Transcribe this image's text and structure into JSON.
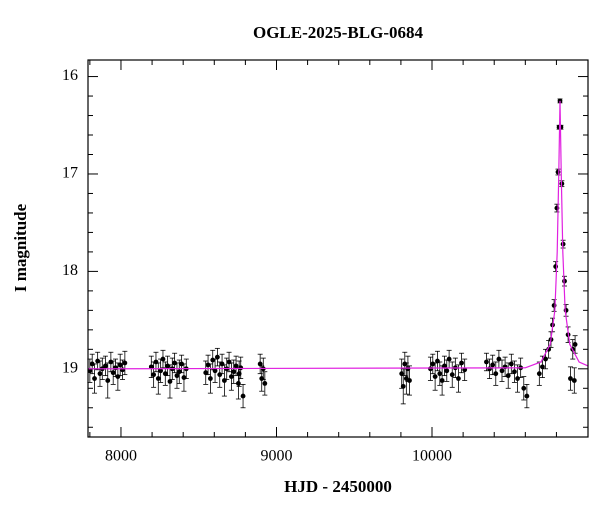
{
  "chart_data": {
    "type": "scatter",
    "title": "OGLE-2025-BLG-0684",
    "xlabel": "HJD - 2450000",
    "ylabel": "I magnitude",
    "xlim": [
      7788,
      11003
    ],
    "ylim": [
      19.7,
      15.83
    ],
    "xticks": [
      8000,
      9000,
      10000
    ],
    "yticks": [
      16,
      17,
      18,
      19
    ],
    "xminorticks": [
      7800,
      8200,
      8400,
      8600,
      8800,
      9200,
      9400,
      9600,
      9800,
      10200,
      10400,
      10600,
      10800
    ],
    "yminorticks": [
      16.2,
      16.4,
      16.6,
      16.8,
      17.2,
      17.4,
      17.6,
      17.8,
      18.2,
      18.4,
      18.6,
      18.8,
      19.2,
      19.4,
      19.6
    ],
    "series": [
      {
        "color": "#000000",
        "x": [
          7800,
          7815,
          7830,
          7850,
          7865,
          7880,
          7900,
          7915,
          7935,
          7950,
          7965,
          7980,
          7995,
          8010,
          8025,
          8195,
          8210,
          8225,
          8240,
          8255,
          8270,
          8285,
          8300,
          8315,
          8330,
          8345,
          8360,
          8375,
          8390,
          8405,
          8420,
          8545,
          8560,
          8575,
          8590,
          8605,
          8620,
          8635,
          8650,
          8665,
          8680,
          8695,
          8710,
          8725,
          8740,
          8755,
          8770,
          8785,
          8760,
          8895,
          8905,
          8915,
          8925,
          9805,
          9815,
          9825,
          9835,
          9845,
          9855,
          9990,
          10005,
          10020,
          10035,
          10050,
          10065,
          10080,
          10095,
          10110,
          10130,
          10150,
          10170,
          10190,
          10210,
          10350,
          10370,
          10390,
          10410,
          10430,
          10450,
          10470,
          10490,
          10510,
          10530,
          10550,
          10570,
          10590,
          10610,
          10690,
          10710,
          10730,
          10750,
          10765,
          10775,
          10785,
          10795,
          10803,
          10810,
          10817,
          10823,
          10829,
          10835,
          10843,
          10852,
          10862,
          10875,
          10890,
          10905,
          10915,
          10920
        ],
        "values": [
          19.02,
          18.95,
          19.1,
          18.92,
          19.05,
          19.0,
          18.97,
          19.12,
          18.93,
          19.04,
          18.99,
          19.08,
          18.96,
          19.01,
          18.94,
          18.98,
          19.06,
          18.93,
          19.1,
          19.02,
          18.9,
          19.05,
          18.97,
          19.13,
          19.0,
          18.94,
          19.07,
          19.03,
          18.95,
          19.09,
          19.0,
          19.04,
          18.96,
          19.1,
          18.91,
          19.02,
          18.88,
          19.06,
          18.95,
          19.12,
          19.0,
          18.93,
          19.08,
          19.03,
          18.97,
          19.15,
          18.99,
          19.28,
          19.05,
          18.95,
          19.1,
          19.0,
          19.15,
          19.05,
          19.18,
          18.95,
          19.1,
          19.0,
          19.12,
          19.0,
          18.95,
          19.08,
          18.92,
          19.05,
          19.12,
          18.97,
          19.02,
          18.9,
          19.06,
          18.99,
          19.1,
          18.94,
          19.01,
          18.93,
          19.0,
          18.96,
          19.05,
          18.9,
          19.02,
          18.98,
          19.07,
          18.95,
          19.03,
          19.1,
          18.99,
          19.2,
          19.28,
          19.05,
          18.98,
          18.9,
          18.8,
          18.7,
          18.55,
          18.35,
          17.95,
          17.35,
          16.98,
          16.52,
          16.25,
          16.52,
          17.1,
          17.72,
          18.1,
          18.4,
          18.65,
          19.1,
          18.8,
          19.12,
          18.75
        ],
        "errors": [
          0.12,
          0.1,
          0.15,
          0.09,
          0.13,
          0.11,
          0.1,
          0.18,
          0.1,
          0.12,
          0.09,
          0.14,
          0.11,
          0.1,
          0.12,
          0.11,
          0.13,
          0.1,
          0.16,
          0.12,
          0.09,
          0.12,
          0.1,
          0.17,
          0.11,
          0.1,
          0.13,
          0.12,
          0.09,
          0.14,
          0.1,
          0.12,
          0.1,
          0.15,
          0.1,
          0.12,
          0.09,
          0.13,
          0.1,
          0.16,
          0.11,
          0.1,
          0.14,
          0.12,
          0.1,
          0.16,
          0.11,
          0.12,
          0.13,
          0.1,
          0.13,
          0.11,
          0.12,
          0.15,
          0.18,
          0.12,
          0.16,
          0.13,
          0.15,
          0.12,
          0.1,
          0.14,
          0.1,
          0.12,
          0.15,
          0.1,
          0.11,
          0.09,
          0.13,
          0.1,
          0.14,
          0.1,
          0.11,
          0.09,
          0.1,
          0.1,
          0.12,
          0.09,
          0.11,
          0.1,
          0.13,
          0.1,
          0.11,
          0.14,
          0.1,
          0.12,
          0.12,
          0.12,
          0.11,
          0.1,
          0.09,
          0.08,
          0.07,
          0.06,
          0.05,
          0.04,
          0.03,
          0.02,
          0.02,
          0.02,
          0.03,
          0.04,
          0.05,
          0.06,
          0.08,
          0.12,
          0.1,
          0.13,
          0.09
        ]
      }
    ],
    "model": {
      "color": "#e020e0",
      "x": [
        7788,
        10600,
        10700,
        10760,
        10790,
        10805,
        10815,
        10823,
        10831,
        10841,
        10856,
        10886,
        10946,
        11003
      ],
      "y": [
        19.0,
        18.99,
        18.93,
        18.75,
        18.4,
        17.8,
        17.0,
        16.25,
        17.0,
        17.8,
        18.4,
        18.75,
        18.93,
        18.97
      ]
    }
  }
}
